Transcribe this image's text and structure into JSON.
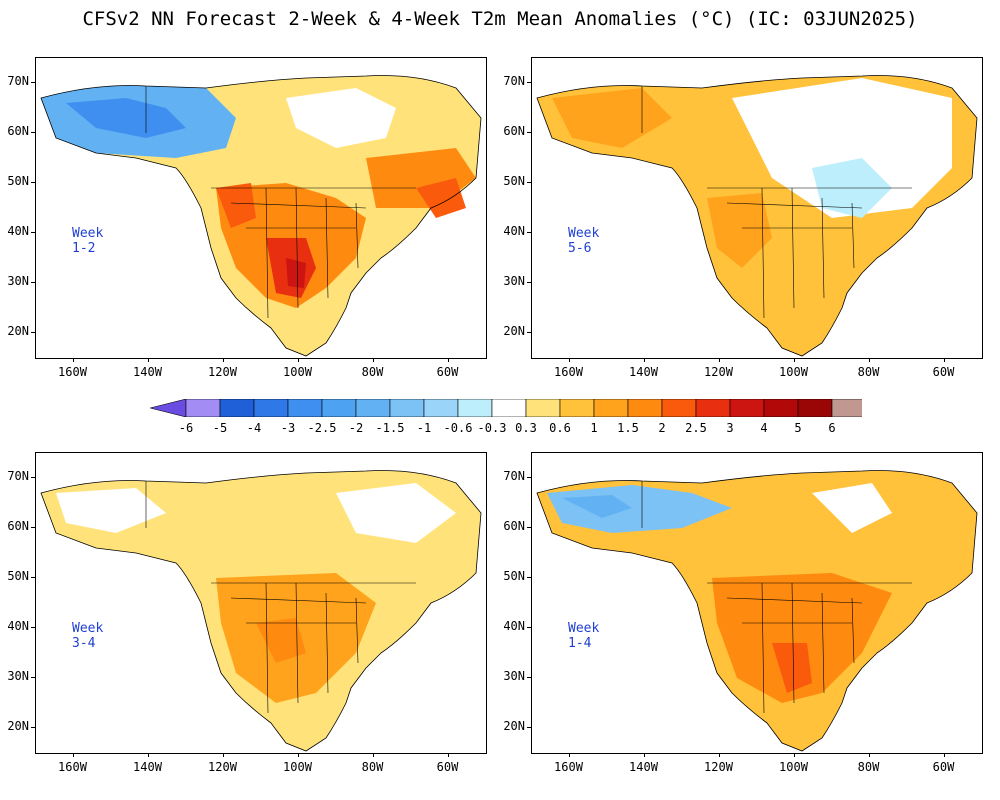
{
  "title": "CFSv2 NN Forecast 2-Week & 4-Week T2m Mean Anomalies (°C) (IC: 03JUN2025)",
  "axes": {
    "lat_labels": [
      "70N",
      "60N",
      "50N",
      "40N",
      "30N",
      "20N"
    ],
    "lon_labels": [
      "160W",
      "140W",
      "120W",
      "100W",
      "80W",
      "60W"
    ],
    "lat_range": [
      15,
      75
    ],
    "lon_range": [
      -170,
      -50
    ]
  },
  "panels": [
    {
      "id": "week12",
      "label": "Week 1-2"
    },
    {
      "id": "week56",
      "label": "Week 5-6"
    },
    {
      "id": "week34",
      "label": "Week 3-4"
    },
    {
      "id": "week14",
      "label": "Week 1-4"
    }
  ],
  "colorbar": {
    "labels": [
      "-6",
      "-5",
      "-4",
      "-3",
      "-2.5",
      "-2",
      "-1.5",
      "-1",
      "-0.6",
      "-0.3",
      "0.3",
      "0.6",
      "1",
      "1.5",
      "2",
      "2.5",
      "3",
      "4",
      "5",
      "6"
    ],
    "colors": [
      "#a48cf5",
      "#1f5fd8",
      "#2f78e8",
      "#3f8ff0",
      "#4ea2f2",
      "#62b2f3",
      "#7cc2f5",
      "#9ad4f8",
      "#bdeefb",
      "#ffffff",
      "#ffe37a",
      "#ffc23a",
      "#ffa21c",
      "#ff8a10",
      "#fa5a0c",
      "#e83010",
      "#cc1410",
      "#b20808",
      "#9a0505",
      "#c09890"
    ],
    "low_end_color": "#6a4ce0",
    "high_end_color": "#a07068"
  }
}
